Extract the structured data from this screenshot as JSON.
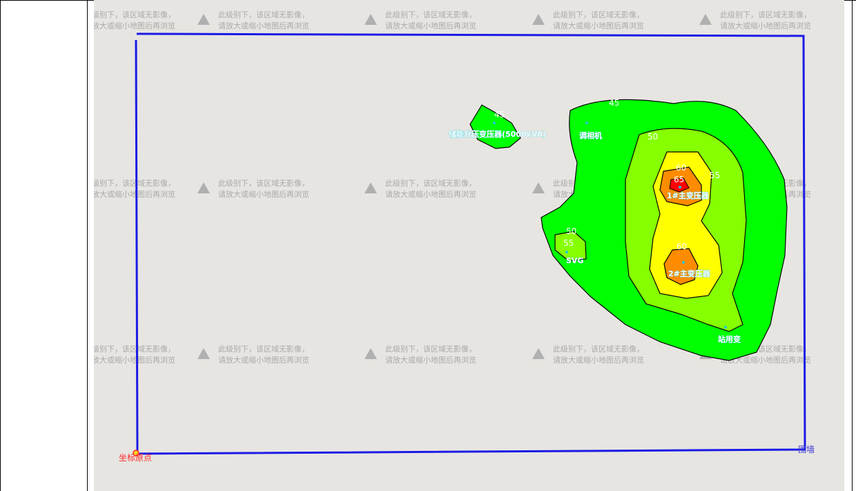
{
  "tile_notice": {
    "line1": "此级别下，该区域无影像，",
    "line2": "请放大或缩小地图后再浏览",
    "icon": "warning-triangle-icon"
  },
  "colors": {
    "band_45": "#00ff00",
    "band_50": "#86ff00",
    "band_55": "#ffff00",
    "band_60": "#ff8c00",
    "band_65": "#ff0000",
    "boundary": "#1a1ae6",
    "map_background": "#e7e5e1",
    "station_marker": "#24c6d8"
  },
  "contour_labels": {
    "main_45": "45",
    "main_50": "50",
    "main_55": "55",
    "upper_60": "60",
    "upper_65": "65",
    "lower_60": "60",
    "storage_45": "45",
    "svg_50": "50",
    "svg_55": "55"
  },
  "stations": {
    "storage": "储能升压变压器(5000kVA)",
    "condenser": "调相机",
    "main1": "1#主变压器",
    "main2": "2#主变压器",
    "svg": "SVG",
    "aux": "站用变"
  },
  "origin_label": "坐标原点",
  "wall_label": "围墙"
}
